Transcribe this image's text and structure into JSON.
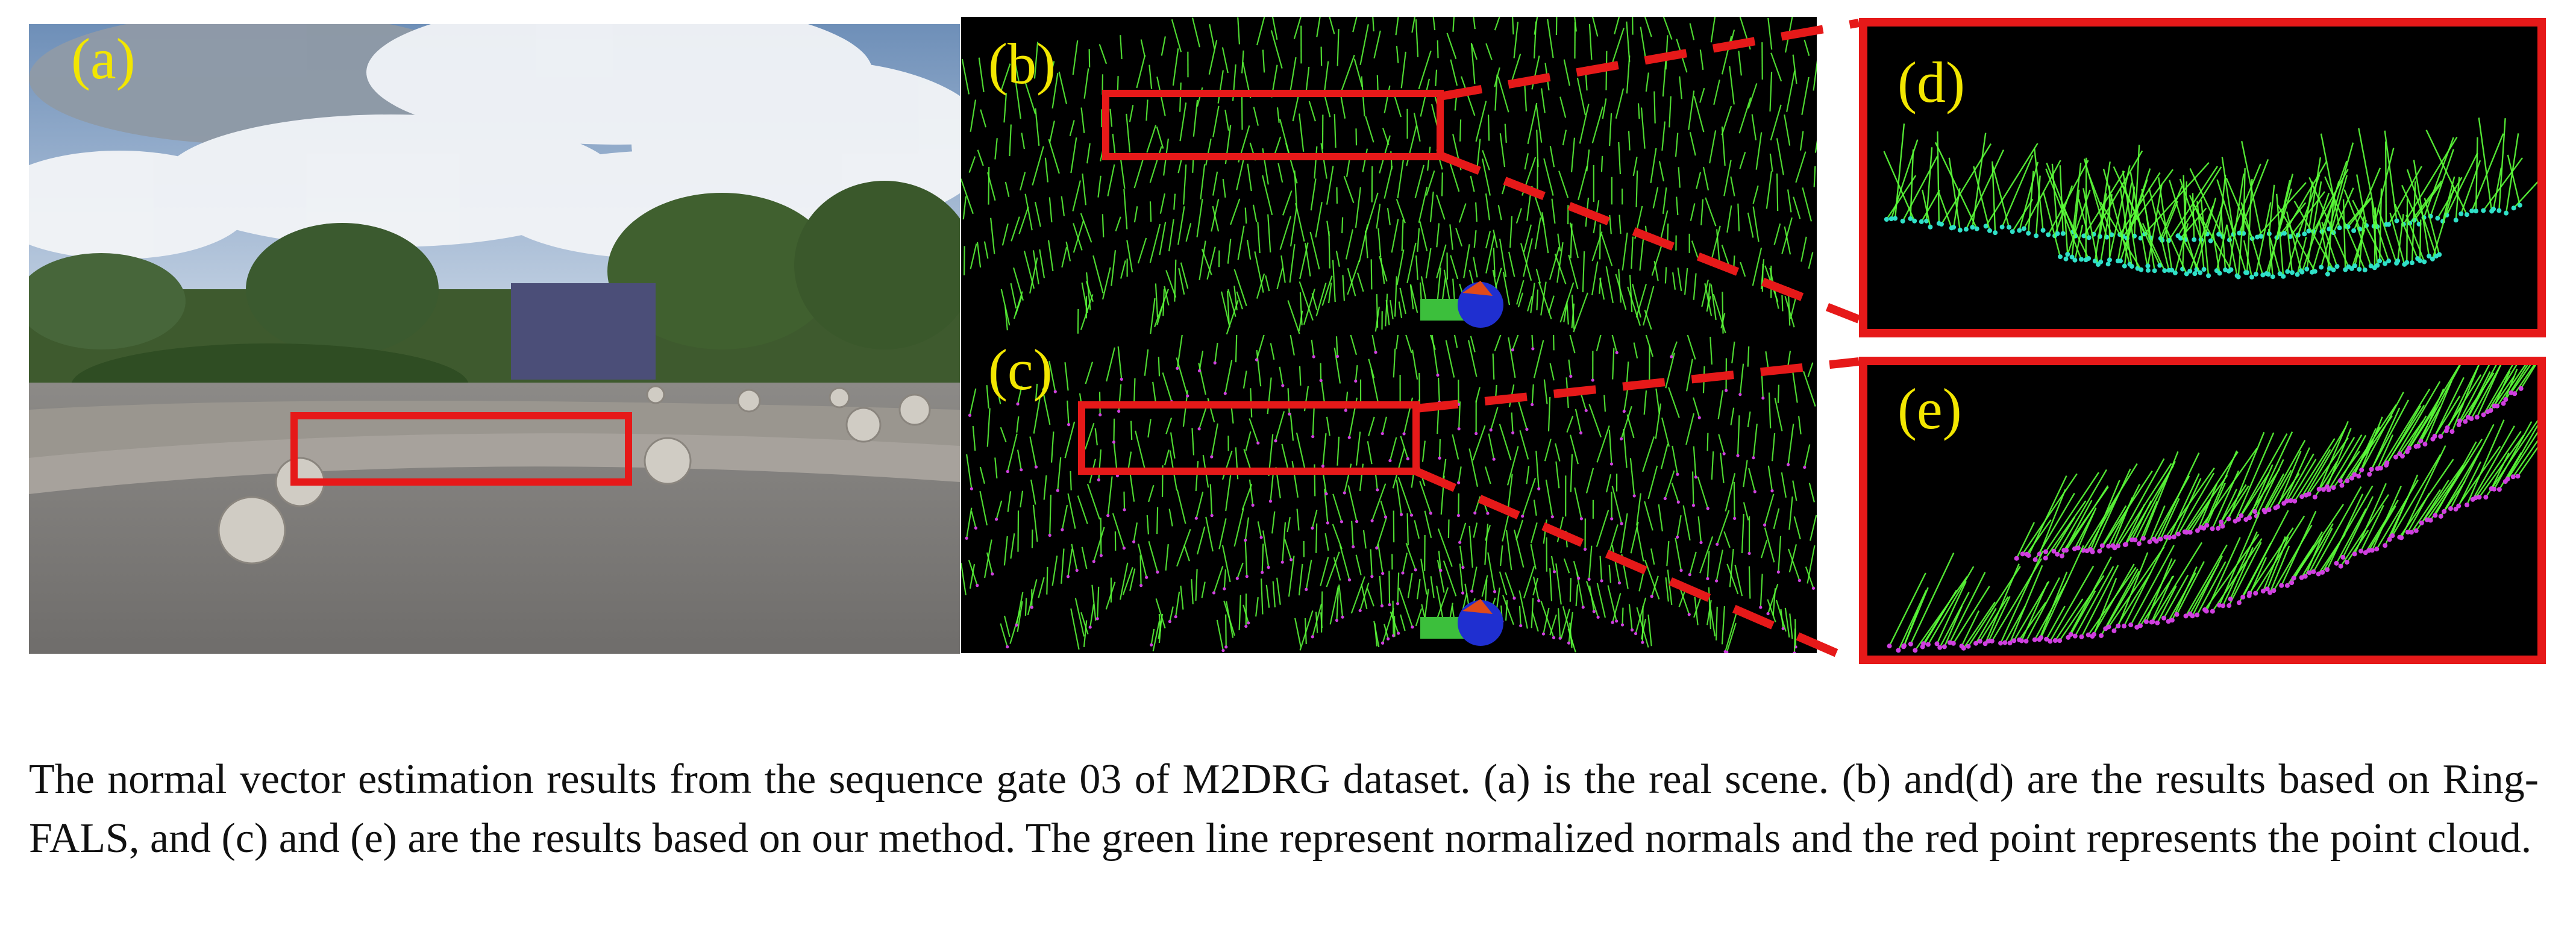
{
  "figure": {
    "panels": [
      {
        "id": "a",
        "label": "(a)",
        "content": "real-scene-photo"
      },
      {
        "id": "b",
        "label": "(b)",
        "content": "ring-fals-normals"
      },
      {
        "id": "c",
        "label": "(c)",
        "content": "our-method-normals"
      },
      {
        "id": "d",
        "label": "(d)",
        "content": "ring-fals-zoom"
      },
      {
        "id": "e",
        "label": "(e)",
        "content": "our-method-zoom"
      }
    ],
    "colors": {
      "highlight": "#e61919",
      "label": "#f2e600",
      "normal_line": "#5cff3a",
      "point_cyan": "#2fe0c8",
      "point_magenta": "#d040e0",
      "background": "#000000"
    }
  },
  "caption": "The normal vector estimation results from the sequence gate 03 of M2DRG dataset. (a) is the real scene. (b) and(d) are the results based on Ring-FALS, and (c) and (e) are the results based on our method. The green line represent  normalized normals and the red point represents the point cloud."
}
